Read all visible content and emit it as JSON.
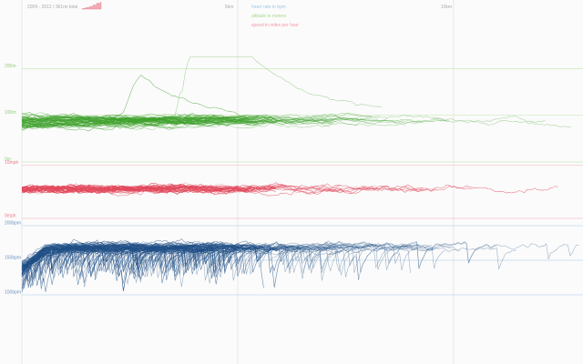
{
  "header": {
    "range_label": "2009 - 2012 / 361mi total"
  },
  "legend": [
    {
      "label": "heart rate in bpm",
      "color": "#9ec9e6"
    },
    {
      "label": "altitude in meters",
      "color": "#a9d98c"
    },
    {
      "label": "speed in miles per hour",
      "color": "#f09aa6"
    }
  ],
  "colors": {
    "heart": "#1f4f86",
    "altitude": "#3fa12c",
    "speed": "#e24a5d",
    "guide_green": "#cde9bd",
    "guide_red": "#f4c3c9",
    "guide_blue": "#c2d8ec",
    "distance_grid": "#e3e3e3"
  },
  "chart_data": [
    {
      "type": "line",
      "x_unit": "distance",
      "x_ticks": [
        {
          "x": 5,
          "label": "5km"
        },
        {
          "x": 10,
          "label": "10km"
        }
      ],
      "xlim": [
        0,
        13
      ]
    },
    {
      "type": "line",
      "name": "altitude in meters",
      "ylim": [
        0,
        230
      ],
      "ticks": [
        {
          "value": 200,
          "label": "200m"
        },
        {
          "value": 100,
          "label": "100m"
        },
        {
          "value": 0,
          "label": "0m"
        }
      ],
      "series_count": 60
    },
    {
      "type": "line",
      "name": "speed in miles per hour",
      "ylim": [
        0,
        12
      ],
      "ticks": [
        {
          "value": 10,
          "label": "10mph"
        },
        {
          "value": 0,
          "label": "0mph"
        }
      ],
      "series_count": 60
    },
    {
      "type": "line",
      "name": "heart rate in bpm",
      "ylim": [
        100,
        200
      ],
      "ticks": [
        {
          "value": 200,
          "label": "200bpm"
        },
        {
          "value": 150,
          "label": "150bpm"
        },
        {
          "value": 100,
          "label": "100bpm"
        }
      ],
      "series_count": 80
    }
  ]
}
